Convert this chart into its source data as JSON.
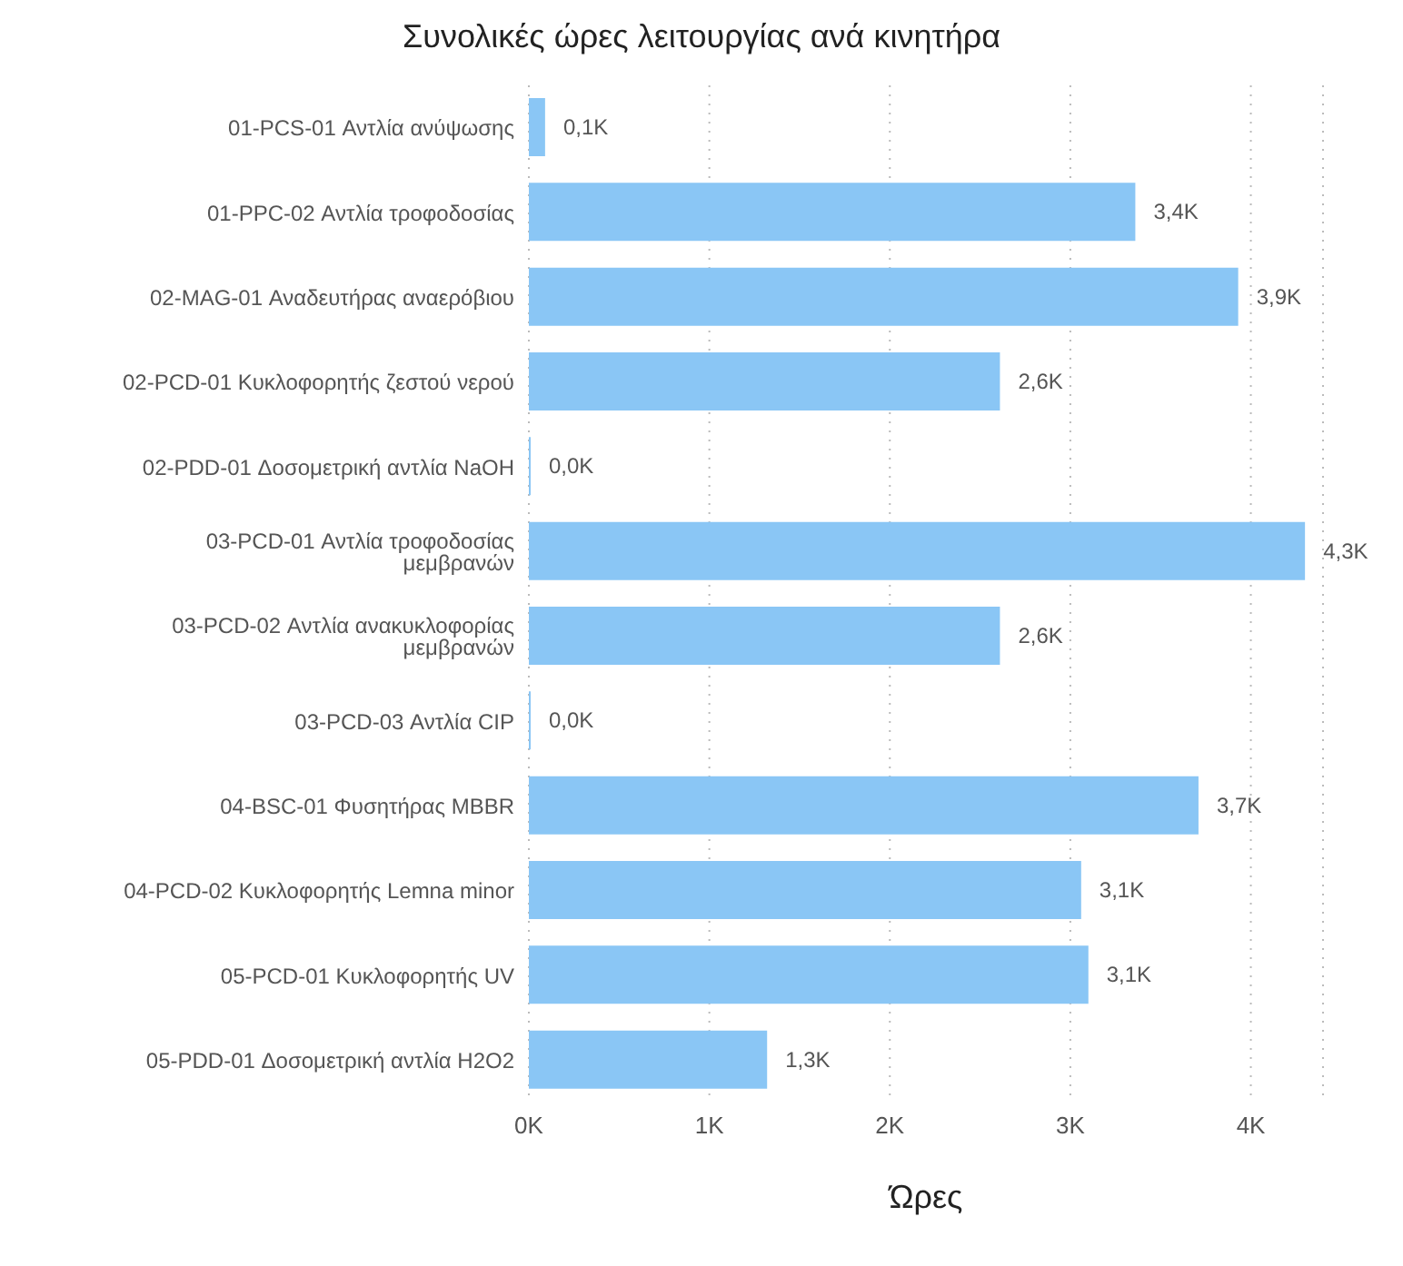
{
  "chart_data": {
    "type": "bar",
    "orientation": "horizontal",
    "title": "Συνολικές ώρες λειτουργίας ανά κινητήρα",
    "xlabel": "Ώρες",
    "categories": [
      "01-PCS-01 Αντλία ανύψωσης",
      "01-PPC-02 Αντλία τροφοδοσίας",
      "02-MAG-01 Αναδευτήρας αναερόβιου",
      "02-PCD-01 Κυκλοφορητής ζεστού νερού",
      "02-PDD-01 Δοσομετρική αντλία NaOH",
      "03-PCD-01 Αντλία τροφοδοσίας μεμβρανών",
      "03-PCD-02 Αντλία ανακυκλοφορίας μεμβρανών",
      "03-PCD-03 Αντλία CIP",
      "04-BSC-01 Φυσητήρας MBBR",
      "04-PCD-02 Κυκλοφορητής Lemna minor",
      "05-PCD-01 Κυκλοφορητής UV",
      "05-PDD-01 Δοσομετρική αντλία H2O2"
    ],
    "values": [
      90,
      3360,
      3930,
      2610,
      10,
      4300,
      2610,
      10,
      3710,
      3060,
      3100,
      1320
    ],
    "value_labels": [
      "0,1K",
      "3,4K",
      "3,9K",
      "2,6K",
      "0,0K",
      "4,3K",
      "2,6K",
      "0,0K",
      "3,7K",
      "3,1K",
      "3,1K",
      "1,3K"
    ],
    "color": "#8ac6f5",
    "xlim": [
      0,
      4400
    ],
    "xticks": [
      {
        "value": 0,
        "label": "0K"
      },
      {
        "value": 1000,
        "label": "1K"
      },
      {
        "value": 2000,
        "label": "2K"
      },
      {
        "value": 3000,
        "label": "3K"
      },
      {
        "value": 4000,
        "label": "4K"
      }
    ],
    "grid": "x",
    "line_style": "dotted"
  }
}
